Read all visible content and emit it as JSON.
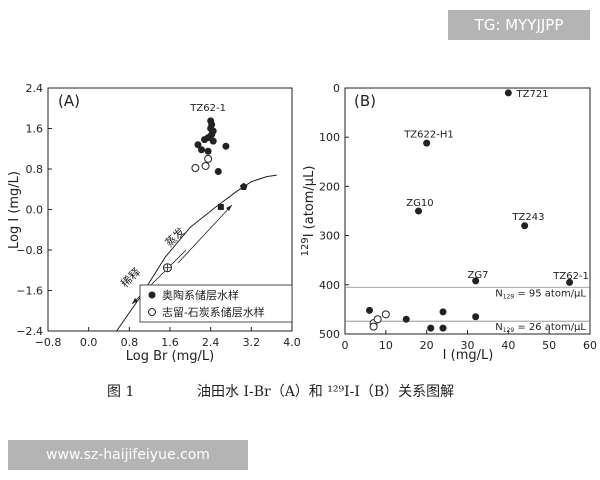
{
  "watermarks": {
    "top": "TG: MYYJJPP",
    "bottom": "www.sz-haijifeiyue.com"
  },
  "caption": {
    "prefix": "图 1",
    "text": "油田水 I-Br（A）和 ¹²⁹I-I（B）关系图解"
  },
  "colors": {
    "ink": "#222222",
    "guide": "#888888"
  },
  "chart_data": [
    {
      "type": "scatter",
      "panel_label": "(A)",
      "xlabel": "Log Br (mg/L)",
      "ylabel": "Log I (mg/L)",
      "xlim": [
        -0.8,
        4.0
      ],
      "ylim": [
        -2.4,
        2.4
      ],
      "xticks": [
        "−0.8",
        "0.0",
        "0.8",
        "1.6",
        "2.4",
        "3.2",
        "4.0"
      ],
      "yticks": [
        "2.4",
        "1.6",
        "0.8",
        "0.0",
        "−0.8",
        "−1.6",
        "−2.4"
      ],
      "series": [
        {
          "name": "奥陶系储层水样",
          "marker": "filled-circle",
          "points": [
            [
              2.4,
              1.75
            ],
            [
              2.42,
              1.68
            ],
            [
              2.4,
              1.6
            ],
            [
              2.45,
              1.55
            ],
            [
              2.42,
              1.48
            ],
            [
              2.35,
              1.42
            ],
            [
              2.28,
              1.38
            ],
            [
              2.45,
              1.35
            ],
            [
              2.15,
              1.28
            ],
            [
              2.22,
              1.18
            ],
            [
              2.35,
              1.15
            ],
            [
              2.7,
              1.25
            ],
            [
              2.55,
              0.75
            ]
          ]
        },
        {
          "name": "志留-石炭系储层水样",
          "marker": "open-circle",
          "points": [
            [
              2.35,
              1.0
            ],
            [
              2.1,
              0.82
            ],
            [
              2.3,
              0.86
            ]
          ]
        }
      ],
      "annotations": [
        {
          "text": "TZ62-1",
          "x": 2.35,
          "y": 1.95
        },
        {
          "text": "蒸发",
          "x": 1.75,
          "y": -0.6
        },
        {
          "text": "稀释",
          "x": 0.88,
          "y": -1.4
        }
      ],
      "trend_curve": [
        [
          0.55,
          -2.4
        ],
        [
          1.0,
          -1.75
        ],
        [
          1.5,
          -0.95
        ],
        [
          2.0,
          -0.35
        ],
        [
          2.5,
          0.05
        ],
        [
          2.9,
          0.35
        ],
        [
          3.2,
          0.55
        ],
        [
          3.5,
          0.65
        ],
        [
          3.7,
          0.68
        ]
      ],
      "trend_markers": [
        {
          "marker": "crossed-circle",
          "x": 1.55,
          "y": -1.15
        },
        {
          "marker": "square",
          "x": 2.6,
          "y": 0.05
        },
        {
          "marker": "pentagon",
          "x": 3.05,
          "y": 0.45
        }
      ],
      "legend_position": "lower-right"
    },
    {
      "type": "scatter",
      "panel_label": "(B)",
      "xlabel": "I (mg/L)",
      "ylabel_sup": "129",
      "ylabel_main": "I (atom/μL)",
      "xlim": [
        0,
        60
      ],
      "ylim": [
        0,
        500
      ],
      "xticks": [
        "0",
        "10",
        "20",
        "30",
        "40",
        "50",
        "60"
      ],
      "yticks": [
        "0",
        "100",
        "200",
        "300",
        "400",
        "500"
      ],
      "series": [
        {
          "name": "filled",
          "marker": "filled-circle",
          "points": [
            [
              40,
              490
            ],
            [
              20,
              388
            ],
            [
              18,
              250
            ],
            [
              44,
              220
            ],
            [
              32,
              108
            ],
            [
              55,
              105
            ],
            [
              6,
              48
            ],
            [
              15,
              30
            ],
            [
              21,
              12
            ],
            [
              24,
              12
            ],
            [
              24,
              45
            ],
            [
              32,
              35
            ]
          ]
        },
        {
          "name": "open",
          "marker": "open-circle",
          "points": [
            [
              7,
              22
            ],
            [
              8,
              30
            ],
            [
              10,
              40
            ],
            [
              7,
              15
            ]
          ]
        }
      ],
      "point_labels": [
        {
          "text": "TZ721",
          "x": 42,
          "y": 490
        },
        {
          "text": "TZ622-H1",
          "x": 14.5,
          "y": 408
        },
        {
          "text": "ZG10",
          "x": 15,
          "y": 268
        },
        {
          "text": "TZ243",
          "x": 41,
          "y": 240
        },
        {
          "text": "ZG7",
          "x": 30,
          "y": 122
        },
        {
          "text": "TZ62-1",
          "x": 51,
          "y": 120
        }
      ],
      "reference_lines": [
        {
          "y": 95,
          "label_prefix": "N",
          "label_sub": "129",
          "label_text": "= 95 atom/μL"
        },
        {
          "y": 26,
          "label_prefix": "N",
          "label_sub": "129",
          "label_text": "= 26 atom/μL"
        }
      ]
    }
  ]
}
